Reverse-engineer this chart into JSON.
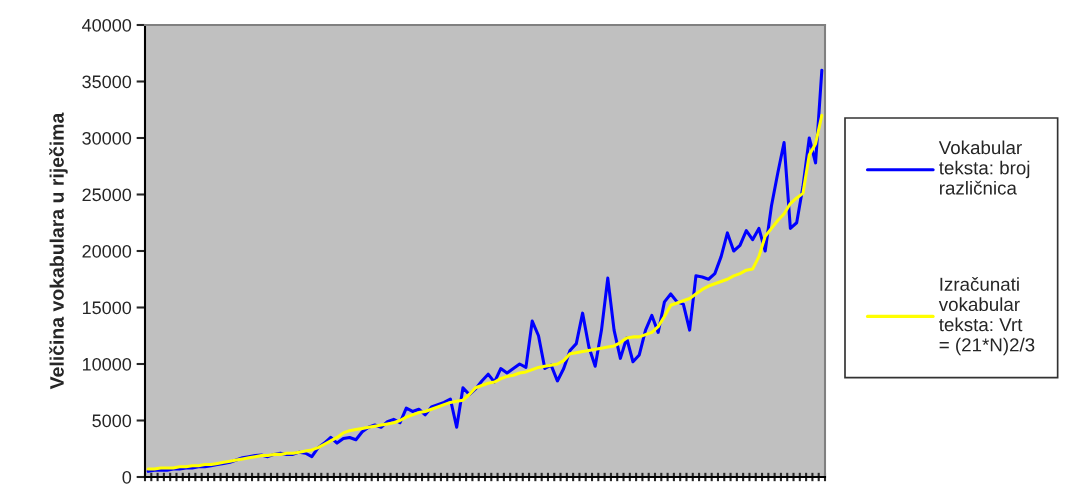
{
  "chart_data": {
    "type": "line",
    "ylabel": "Veličina vokabulara u riječima",
    "categories": [
      null,
      null,
      null,
      null,
      null,
      null,
      null,
      null,
      null,
      null,
      null,
      null,
      null,
      null,
      null,
      null,
      null,
      null,
      null,
      null,
      null,
      null,
      null,
      null,
      null,
      null,
      null,
      null,
      null,
      null,
      null,
      null,
      null,
      null,
      null,
      null,
      null,
      null,
      null,
      null,
      null,
      null,
      null,
      null,
      null,
      null,
      null,
      null,
      null,
      null,
      null,
      null,
      null,
      null,
      null,
      null,
      null,
      null,
      null,
      null,
      null,
      null,
      null,
      null,
      null,
      null,
      null,
      null,
      null,
      null,
      null,
      null,
      null,
      null,
      null,
      null,
      null,
      null,
      null,
      null,
      null,
      null,
      null,
      null,
      null,
      null,
      null,
      null,
      null,
      null,
      null,
      null,
      null,
      null,
      null,
      null,
      null,
      null,
      null,
      null,
      null,
      null,
      null,
      null,
      null,
      null,
      null,
      null
    ],
    "series": [
      {
        "name": "Vokabular teksta: broj različnica",
        "color": "#0000ff",
        "values": [
          500,
          600,
          600,
          600,
          700,
          700,
          800,
          800,
          900,
          900,
          1000,
          1100,
          1200,
          1300,
          1500,
          1700,
          1800,
          1900,
          1950,
          1800,
          2000,
          2100,
          2000,
          2000,
          2200,
          2100,
          1800,
          2600,
          3000,
          3500,
          3000,
          3400,
          3500,
          3300,
          4000,
          4400,
          4600,
          4400,
          4900,
          5100,
          4800,
          6100,
          5800,
          6000,
          5500,
          6200,
          6400,
          6600,
          6900,
          4400,
          7900,
          7300,
          7800,
          8500,
          9100,
          8400,
          9600,
          9200,
          9600,
          10000,
          9700,
          13800,
          12500,
          9600,
          9900,
          8500,
          9600,
          11200,
          11800,
          14500,
          11500,
          9800,
          13000,
          17600,
          13000,
          10500,
          12300,
          10200,
          10800,
          13000,
          14300,
          12800,
          15500,
          16200,
          15500,
          15300,
          13000,
          17800,
          17700,
          17500,
          18000,
          19500,
          21600,
          20000,
          20500,
          21800,
          21000,
          22000,
          20000,
          24000,
          26900,
          29600,
          22000,
          22500,
          25700,
          30000,
          27800,
          36000
        ]
      },
      {
        "name": "Izračunati vokabular teksta: Vrt = (21*N)2/3",
        "color": "#ffff00",
        "values": [
          700,
          700,
          800,
          800,
          800,
          900,
          900,
          1000,
          1000,
          1100,
          1100,
          1200,
          1300,
          1400,
          1500,
          1600,
          1700,
          1800,
          1900,
          1900,
          2000,
          2000,
          2100,
          2100,
          2200,
          2300,
          2400,
          2600,
          2900,
          3200,
          3500,
          3900,
          4100,
          4200,
          4300,
          4400,
          4500,
          4600,
          4700,
          4800,
          5000,
          5300,
          5500,
          5700,
          5800,
          6000,
          6200,
          6400,
          6600,
          6700,
          6800,
          7300,
          7900,
          8100,
          8300,
          8400,
          8700,
          8900,
          9000,
          9200,
          9300,
          9500,
          9700,
          9800,
          9900,
          10000,
          10300,
          10900,
          11000,
          11100,
          11200,
          11300,
          11400,
          11500,
          11600,
          11900,
          12300,
          12400,
          12400,
          12600,
          12800,
          13300,
          14200,
          15200,
          15400,
          15600,
          15800,
          16200,
          16600,
          16900,
          17100,
          17300,
          17500,
          17800,
          18000,
          18300,
          18400,
          19500,
          21300,
          22000,
          22700,
          23300,
          24200,
          24700,
          25100,
          28500,
          29500,
          32000
        ]
      }
    ],
    "ylim": [
      0,
      40000
    ],
    "yticks": [
      0,
      5000,
      10000,
      15000,
      20000,
      25000,
      30000,
      35000,
      40000
    ],
    "tick_labels": "y",
    "legend": "right",
    "grid": false
  }
}
